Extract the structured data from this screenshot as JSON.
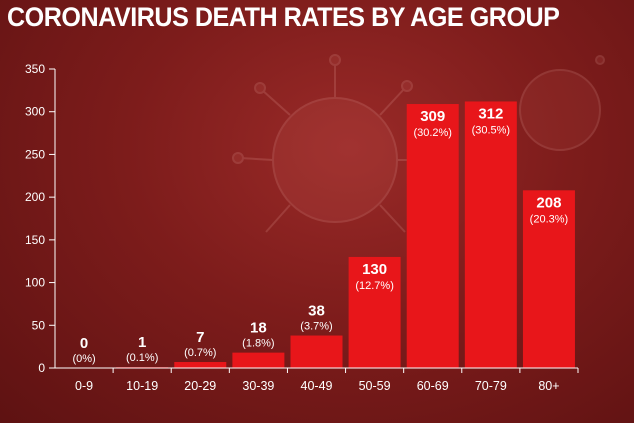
{
  "title": "CORONAVIRUS DEATH RATES BY AGE GROUP",
  "colors": {
    "bar": "#e8161a",
    "axis": "#ffffff",
    "background": "#7a1a1a"
  },
  "chart_data": {
    "type": "bar",
    "title": "CORONAVIRUS DEATH RATES BY AGE GROUP",
    "xlabel": "",
    "ylabel": "",
    "ylim": [
      0,
      350
    ],
    "yticks": [
      0,
      50,
      100,
      150,
      200,
      250,
      300,
      350
    ],
    "grid": false,
    "legend": "none",
    "categories": [
      "0-9",
      "10-19",
      "20-29",
      "30-39",
      "40-49",
      "50-59",
      "60-69",
      "70-79",
      "80+"
    ],
    "values": [
      0,
      1,
      7,
      18,
      38,
      130,
      309,
      312,
      208
    ],
    "data_labels": [
      "0",
      "1",
      "7",
      "18",
      "38",
      "130",
      "309",
      "312",
      "208"
    ],
    "percent_labels": [
      "(0%)",
      "(0.1%)",
      "(0.7%)",
      "(1.8%)",
      "(3.7%)",
      "(12.7%)",
      "(30.2%)",
      "(30.5%)",
      "(20.3%)"
    ]
  }
}
